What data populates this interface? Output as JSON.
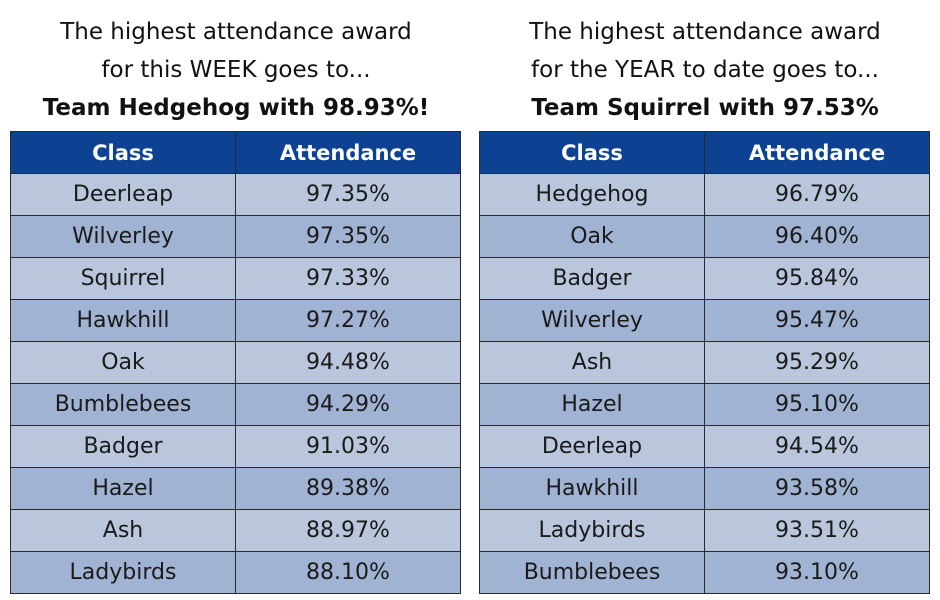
{
  "colors": {
    "header_bg": "#0d4293",
    "header_text": "#ffffff",
    "row_light": "#b9c6db",
    "row_dark": "#a1b3d2",
    "border": "#2a2a2a"
  },
  "week": {
    "heading_line1": "The highest attendance award",
    "heading_line2": "for this WEEK goes to...",
    "winner": "Team Hedgehog with 98.93%!",
    "columns": [
      "Class",
      "Attendance"
    ],
    "rows": [
      {
        "class": "Deerleap",
        "attendance": "97.35%"
      },
      {
        "class": "Wilverley",
        "attendance": "97.35%"
      },
      {
        "class": "Squirrel",
        "attendance": "97.33%"
      },
      {
        "class": "Hawkhill",
        "attendance": "97.27%"
      },
      {
        "class": "Oak",
        "attendance": "94.48%"
      },
      {
        "class": "Bumblebees",
        "attendance": "94.29%"
      },
      {
        "class": "Badger",
        "attendance": "91.03%"
      },
      {
        "class": "Hazel",
        "attendance": "89.38%"
      },
      {
        "class": "Ash",
        "attendance": "88.97%"
      },
      {
        "class": "Ladybirds",
        "attendance": "88.10%"
      }
    ]
  },
  "year": {
    "heading_line1": "The highest attendance award",
    "heading_line2": "for the YEAR to date goes to...",
    "winner": "Team Squirrel with 97.53%",
    "columns": [
      "Class",
      "Attendance"
    ],
    "rows": [
      {
        "class": "Hedgehog",
        "attendance": "96.79%"
      },
      {
        "class": "Oak",
        "attendance": "96.40%"
      },
      {
        "class": "Badger",
        "attendance": "95.84%"
      },
      {
        "class": "Wilverley",
        "attendance": "95.47%"
      },
      {
        "class": "Ash",
        "attendance": "95.29%"
      },
      {
        "class": "Hazel",
        "attendance": "95.10%"
      },
      {
        "class": "Deerleap",
        "attendance": "94.54%"
      },
      {
        "class": "Hawkhill",
        "attendance": "93.58%"
      },
      {
        "class": "Ladybirds",
        "attendance": "93.51%"
      },
      {
        "class": "Bumblebees",
        "attendance": "93.10%"
      }
    ]
  }
}
